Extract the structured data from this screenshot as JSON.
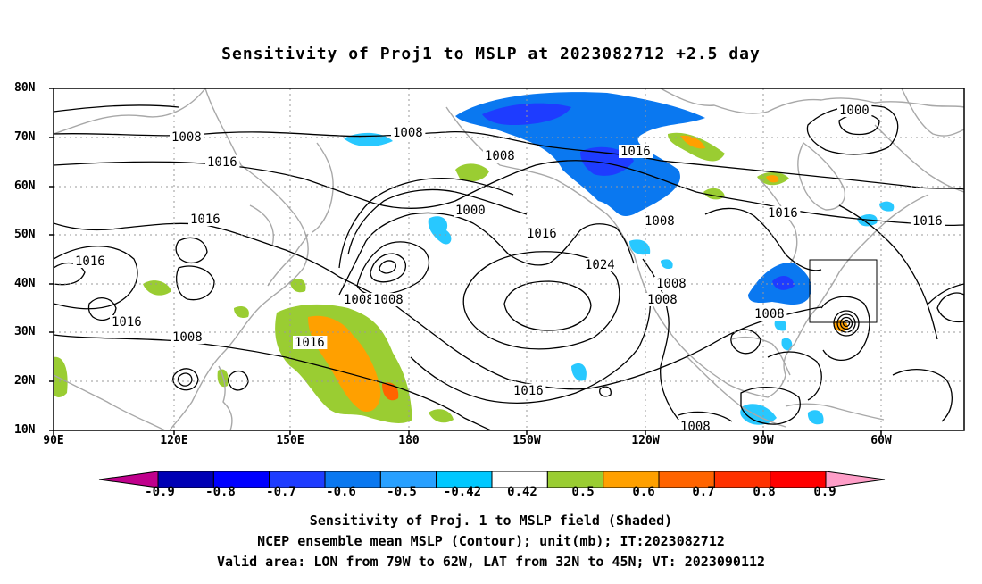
{
  "title": "Sensitivity of Proj1 to MSLP at 2023082712 +2.5 day",
  "lat_labels": [
    "80N",
    "70N",
    "60N",
    "50N",
    "40N",
    "30N",
    "20N",
    "10N"
  ],
  "lon_labels": [
    "90E",
    "120E",
    "150E",
    "180",
    "150W",
    "120W",
    "90W",
    "60W"
  ],
  "contour_labels": [
    "1000",
    "1000",
    "1008",
    "1008",
    "1008",
    "1008",
    "1008",
    "1008",
    "1008",
    "1008",
    "1008",
    "1008",
    "1008",
    "1016",
    "1016",
    "1016",
    "1016",
    "1016",
    "1016",
    "1016",
    "1016",
    "1016",
    "1016",
    "1024"
  ],
  "colorbar": {
    "ticks": [
      "-0.9",
      "-0.8",
      "-0.7",
      "-0.6",
      "-0.5",
      "-0.42",
      "0.42",
      "0.5",
      "0.6",
      "0.7",
      "0.8",
      "0.9"
    ],
    "colors": [
      "#c0008c",
      "#0000b4",
      "#0000ff",
      "#1e3cff",
      "#0a78f0",
      "#28a0ff",
      "#00c8ff",
      "#ffffff",
      "#9acd32",
      "#ffa000",
      "#ff6400",
      "#ff3200",
      "#ff0000",
      "#ff9ec8"
    ]
  },
  "shading_colors": {
    "neg_light": "#28c8ff",
    "neg_mid": "#0a78f0",
    "neg_strong": "#1e3cff",
    "pos_light": "#9acd32",
    "pos_mid": "#ffa000",
    "pos_strong": "#ff6400"
  },
  "footer": {
    "line1": "Sensitivity of Proj. 1 to MSLP field (Shaded)",
    "line2": "NCEP ensemble mean MSLP (Contour); unit(mb); IT:2023082712",
    "line3": "Valid area: LON from 79W to 62W, LAT from 32N to 45N; VT: 2023090112"
  }
}
